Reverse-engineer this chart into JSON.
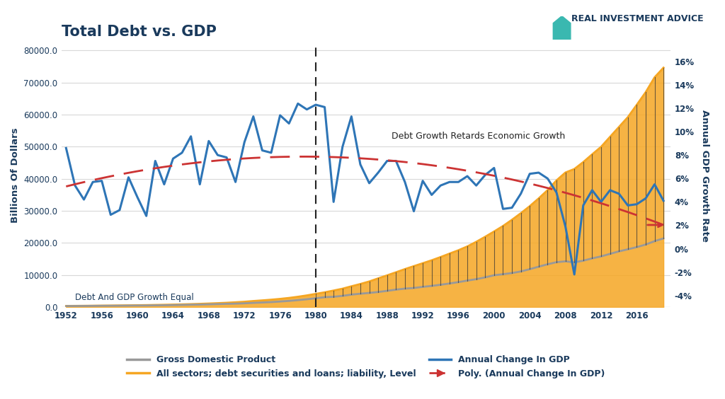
{
  "title": "Total Debt vs. GDP",
  "ylabel_left": "Billions Of Dollars",
  "ylabel_right": "Annual GDP Growth Rate",
  "background_color": "#ffffff",
  "title_color": "#1a3a5c",
  "dashed_line_x": 1980,
  "annotation1_text": "Debt And GDP Growth Equal",
  "annotation2_text": "Debt Growth Retards Economic Growth",
  "watermark": "REAL INVESTMENT ADVICE",
  "years": [
    1952,
    1953,
    1954,
    1955,
    1956,
    1957,
    1958,
    1959,
    1960,
    1961,
    1962,
    1963,
    1964,
    1965,
    1966,
    1967,
    1968,
    1969,
    1970,
    1971,
    1972,
    1973,
    1974,
    1975,
    1976,
    1977,
    1978,
    1979,
    1980,
    1981,
    1982,
    1983,
    1984,
    1985,
    1986,
    1987,
    1988,
    1989,
    1990,
    1991,
    1992,
    1993,
    1994,
    1995,
    1996,
    1997,
    1998,
    1999,
    2000,
    2001,
    2002,
    2003,
    2004,
    2005,
    2006,
    2007,
    2008,
    2009,
    2010,
    2011,
    2012,
    2013,
    2014,
    2015,
    2016,
    2017,
    2018,
    2019
  ],
  "gdp_billions": [
    367,
    387,
    403,
    426,
    451,
    464,
    479,
    508,
    530,
    545,
    586,
    618,
    665,
    720,
    789,
    832,
    909,
    982,
    1058,
    1118,
    1221,
    1359,
    1474,
    1598,
    1782,
    1974,
    2218,
    2481,
    2789,
    3128,
    3255,
    3537,
    3933,
    4213,
    4453,
    4742,
    5100,
    5481,
    5800,
    5993,
    6343,
    6637,
    7000,
    7397,
    7817,
    8300,
    8747,
    9303,
    9951,
    10286,
    10643,
    11142,
    11853,
    12623,
    13377,
    14029,
    14292,
    13974,
    14499,
    15218,
    15825,
    16616,
    17393,
    18037,
    18715,
    19519,
    20580,
    21433
  ],
  "debt_billions": [
    406,
    429,
    452,
    481,
    507,
    531,
    564,
    595,
    634,
    668,
    720,
    770,
    830,
    899,
    974,
    1063,
    1165,
    1276,
    1397,
    1551,
    1715,
    1944,
    2139,
    2355,
    2606,
    2903,
    3268,
    3687,
    4168,
    4652,
    5199,
    5780,
    6529,
    7239,
    8034,
    8991,
    9929,
    10893,
    11879,
    12797,
    13704,
    14626,
    15631,
    16699,
    17751,
    18941,
    20376,
    21946,
    23591,
    25298,
    27228,
    29280,
    31474,
    33889,
    36463,
    39505,
    41949,
    43048,
    45201,
    47607,
    49950,
    53046,
    56120,
    59186,
    63026,
    66955,
    71588,
    74600
  ],
  "gdp_growth_rate": [
    0.086,
    0.054,
    0.042,
    0.057,
    0.058,
    0.029,
    0.033,
    0.061,
    0.044,
    0.028,
    0.075,
    0.055,
    0.077,
    0.082,
    0.096,
    0.055,
    0.092,
    0.08,
    0.078,
    0.057,
    0.091,
    0.113,
    0.084,
    0.082,
    0.114,
    0.107,
    0.124,
    0.119,
    0.123,
    0.121,
    0.04,
    0.087,
    0.113,
    0.072,
    0.056,
    0.065,
    0.075,
    0.075,
    0.057,
    0.032,
    0.058,
    0.046,
    0.054,
    0.057,
    0.057,
    0.062,
    0.054,
    0.063,
    0.069,
    0.034,
    0.035,
    0.047,
    0.064,
    0.065,
    0.06,
    0.048,
    0.019,
    -0.022,
    0.037,
    0.05,
    0.04,
    0.05,
    0.047,
    0.037,
    0.038,
    0.043,
    0.055,
    0.041
  ],
  "ylim_left": [
    0,
    82000
  ],
  "ylim_right": [
    -0.05,
    0.175
  ],
  "xticks": [
    1952,
    1956,
    1960,
    1964,
    1968,
    1972,
    1976,
    1980,
    1984,
    1988,
    1992,
    1996,
    2000,
    2004,
    2008,
    2012,
    2016
  ],
  "right_yticks": [
    -0.04,
    -0.02,
    0.0,
    0.02,
    0.04,
    0.06,
    0.08,
    0.1,
    0.12,
    0.14,
    0.16
  ],
  "right_ytick_labels": [
    "-4%",
    "-2%",
    "0%",
    "2%",
    "4%",
    "6%",
    "8%",
    "10%",
    "12%",
    "14%",
    "16%"
  ],
  "gdp_color": "#999999",
  "debt_fill_color": "#f5a623",
  "debt_line_color": "#f5a623",
  "gdp_change_color": "#2e75b6",
  "poly_color": "#cc3333",
  "vbar_color": "#888888",
  "grid_color": "#d8d8d8"
}
